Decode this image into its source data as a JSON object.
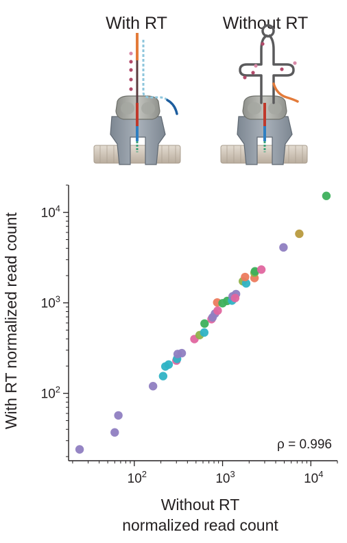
{
  "panels": {
    "left_title": "With RT",
    "right_title": "Without RT"
  },
  "chart_data": {
    "type": "scatter",
    "xscale": "log",
    "yscale": "log",
    "xlim": [
      18,
      20000
    ],
    "ylim": [
      18,
      20000
    ],
    "xticks": [
      100,
      1000,
      10000
    ],
    "yticks": [
      100,
      1000,
      10000
    ],
    "xlabel_line1": "Without RT",
    "xlabel_line2": "normalized read count",
    "ylabel": "With RT normalized read count",
    "annotation": "ρ = 0.996",
    "grid": false,
    "points": [
      {
        "x": 24,
        "y": 24,
        "color": "#8f7ec1"
      },
      {
        "x": 60,
        "y": 37,
        "color": "#8f7ec1"
      },
      {
        "x": 66,
        "y": 57,
        "color": "#8f7ec1"
      },
      {
        "x": 163,
        "y": 120,
        "color": "#8f7ec1"
      },
      {
        "x": 212,
        "y": 155,
        "color": "#2fb3c5"
      },
      {
        "x": 225,
        "y": 198,
        "color": "#2fb3c5"
      },
      {
        "x": 245,
        "y": 208,
        "color": "#2fb3c5"
      },
      {
        "x": 300,
        "y": 230,
        "color": "#e0669f"
      },
      {
        "x": 305,
        "y": 240,
        "color": "#2fb3c5"
      },
      {
        "x": 310,
        "y": 272,
        "color": "#8f7ec1"
      },
      {
        "x": 345,
        "y": 278,
        "color": "#8f7ec1"
      },
      {
        "x": 480,
        "y": 398,
        "color": "#e0669f"
      },
      {
        "x": 550,
        "y": 440,
        "color": "#8fb24a"
      },
      {
        "x": 620,
        "y": 470,
        "color": "#2fb3c5"
      },
      {
        "x": 625,
        "y": 590,
        "color": "#3db05c"
      },
      {
        "x": 750,
        "y": 660,
        "color": "#e0669f"
      },
      {
        "x": 770,
        "y": 690,
        "color": "#8f7ec1"
      },
      {
        "x": 820,
        "y": 760,
        "color": "#8f7ec1"
      },
      {
        "x": 880,
        "y": 820,
        "color": "#e0669f"
      },
      {
        "x": 870,
        "y": 1010,
        "color": "#ec7b5e"
      },
      {
        "x": 1000,
        "y": 990,
        "color": "#3db05c"
      },
      {
        "x": 1130,
        "y": 1050,
        "color": "#3db05c"
      },
      {
        "x": 1280,
        "y": 1060,
        "color": "#2fb3c5"
      },
      {
        "x": 1300,
        "y": 1180,
        "color": "#8f7ec1"
      },
      {
        "x": 1420,
        "y": 1250,
        "color": "#8f7ec1"
      },
      {
        "x": 1390,
        "y": 1130,
        "color": "#e0669f"
      },
      {
        "x": 1700,
        "y": 1730,
        "color": "#8fb24a"
      },
      {
        "x": 1850,
        "y": 1640,
        "color": "#2fb3c5"
      },
      {
        "x": 1800,
        "y": 1930,
        "color": "#ec7b5e"
      },
      {
        "x": 2300,
        "y": 1880,
        "color": "#ec7b5e"
      },
      {
        "x": 2300,
        "y": 2150,
        "color": "#8fb24a"
      },
      {
        "x": 2330,
        "y": 2230,
        "color": "#3db05c"
      },
      {
        "x": 2750,
        "y": 2330,
        "color": "#e0669f"
      },
      {
        "x": 4900,
        "y": 4100,
        "color": "#8f7ec1"
      },
      {
        "x": 7400,
        "y": 5800,
        "color": "#b89a3e"
      },
      {
        "x": 15000,
        "y": 15200,
        "color": "#3db05c"
      }
    ]
  }
}
